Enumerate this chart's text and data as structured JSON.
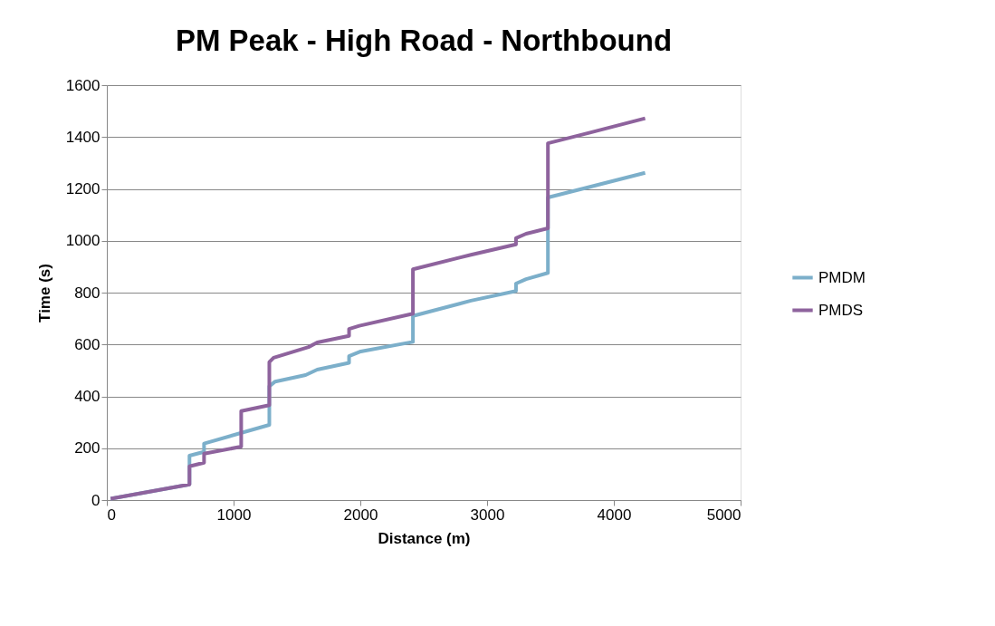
{
  "chart_data": {
    "type": "line",
    "title": "PM Peak - High Road - Northbound",
    "xlabel": "Distance (m)",
    "ylabel": "Time (s)",
    "xlim": [
      0,
      5000
    ],
    "xticks": [
      0,
      1000,
      2000,
      3000,
      4000,
      5000
    ],
    "ylim": [
      0,
      1600
    ],
    "yticks": [
      0,
      200,
      400,
      600,
      800,
      1000,
      1200,
      1400,
      1600
    ],
    "grid": "y",
    "legend": "right",
    "marker": "none",
    "line_style": "solid",
    "series": [
      {
        "name": "PMDM",
        "color": "#7cafca",
        "x": [
          30,
          652,
          652,
          767,
          767,
          1282,
          1282,
          1328,
          1568,
          1660,
          1911,
          1911,
          2003,
          2415,
          2415,
          2873,
          3228,
          3228,
          3308,
          3480,
          3480,
          3812,
          4247
        ],
        "values": [
          5,
          60,
          171,
          186,
          218,
          290,
          439,
          457,
          482,
          503,
          529,
          555,
          573,
          610,
          710,
          769,
          806,
          835,
          852,
          876,
          1167,
          1208,
          1262
        ]
      },
      {
        "name": "PMDS",
        "color": "#8e639d",
        "x": [
          30,
          652,
          652,
          767,
          767,
          1060,
          1060,
          1282,
          1282,
          1316,
          1591,
          1660,
          1911,
          1911,
          1992,
          2415,
          2415,
          2873,
          3228,
          3228,
          3308,
          3480,
          3480,
          3812,
          4247
        ],
        "values": [
          5,
          60,
          130,
          144,
          179,
          206,
          343,
          366,
          532,
          549,
          590,
          608,
          633,
          660,
          672,
          719,
          890,
          946,
          986,
          1010,
          1027,
          1048,
          1376,
          1417,
          1472
        ]
      }
    ]
  }
}
